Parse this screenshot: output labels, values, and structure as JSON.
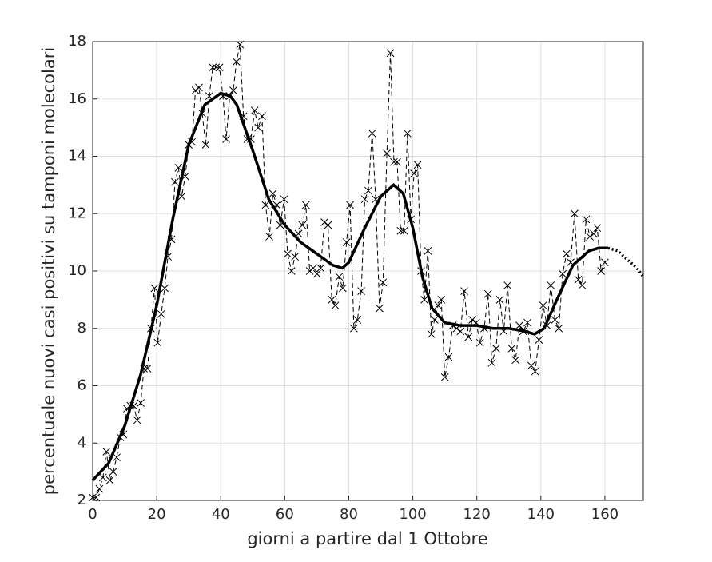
{
  "chart_data": {
    "type": "line",
    "xlabel": "giorni a partire dal 1 Ottobre",
    "ylabel": "percentuale nuovi casi positivi su tamponi molecolari",
    "xlim": [
      0,
      172
    ],
    "ylim": [
      2,
      18
    ],
    "xticks": [
      0,
      20,
      40,
      60,
      80,
      100,
      120,
      140,
      160
    ],
    "yticks": [
      2,
      4,
      6,
      8,
      10,
      12,
      14,
      16,
      18
    ],
    "grid": true,
    "series": [
      {
        "color": "#000000",
        "line_style": "dashed",
        "line_width": 1,
        "marker": "x",
        "x": [
          0,
          1.1,
          2.1,
          3.2,
          4.3,
          5.4,
          6.4,
          7.5,
          8.6,
          9.6,
          10.7,
          11.8,
          12.8,
          13.9,
          15,
          16,
          17.1,
          18.2,
          19.3,
          20.3,
          21.4,
          22.5,
          23.5,
          24.6,
          25.7,
          26.8,
          27.8,
          28.9,
          30,
          31,
          32.1,
          33.2,
          34.2,
          35.3,
          36.4,
          37.5,
          38.5,
          39.6,
          40.7,
          41.7,
          42.8,
          43.9,
          44.9,
          46,
          47.1,
          48.3,
          49.4,
          50.6,
          51.7,
          52.9,
          54,
          55.2,
          56.3,
          57.5,
          58.6,
          59.8,
          60.9,
          62.1,
          63.2,
          64.3,
          65.5,
          66.6,
          67.8,
          68.9,
          70.1,
          71.2,
          72.4,
          73.5,
          74.7,
          75.8,
          77,
          78.1,
          79.3,
          80.4,
          81.6,
          82.7,
          83.9,
          85,
          86.1,
          87.3,
          88.4,
          89.6,
          90.7,
          91.9,
          93,
          94.1,
          95.1,
          96.2,
          97.3,
          98.3,
          99.4,
          100.4,
          101.5,
          102.6,
          103.6,
          104.7,
          105.8,
          106.8,
          107.9,
          108.9,
          110,
          111.2,
          112.5,
          113.7,
          114.9,
          116.1,
          117.4,
          118.6,
          119.8,
          121,
          122.3,
          123.5,
          124.7,
          126,
          127.2,
          128.4,
          129.6,
          130.9,
          132.1,
          133.3,
          134.5,
          135.8,
          137,
          138.2,
          139.4,
          140.7,
          141.9,
          143.1,
          144.4,
          145.6,
          146.8,
          148,
          149.3,
          150.5,
          151.7,
          152.9,
          154.1,
          155.3,
          156.5,
          157.6,
          158.8,
          160
        ],
        "values": [
          2.1,
          2.1,
          2.4,
          2.8,
          3.7,
          2.7,
          3.0,
          3.5,
          4.2,
          4.3,
          5.2,
          5.3,
          5.3,
          4.8,
          5.4,
          6.6,
          6.6,
          8.0,
          9.4,
          7.5,
          8.5,
          9.4,
          10.5,
          11.1,
          13.1,
          13.6,
          12.6,
          13.3,
          14.4,
          14.5,
          16.3,
          16.4,
          15.5,
          14.4,
          16.1,
          17.1,
          17.1,
          17.1,
          16.1,
          14.6,
          16.1,
          16.3,
          17.3,
          17.9,
          15.4,
          14.6,
          14.6,
          15.6,
          15.0,
          15.4,
          12.3,
          11.2,
          12.7,
          12.3,
          11.6,
          12.5,
          10.6,
          10.0,
          10.5,
          11.3,
          11.6,
          12.3,
          10.0,
          10.1,
          9.9,
          10.1,
          11.7,
          11.6,
          9.0,
          8.8,
          9.8,
          9.4,
          11.0,
          12.3,
          8.0,
          8.3,
          9.3,
          12.5,
          12.8,
          14.8,
          12.5,
          8.7,
          9.6,
          14.1,
          17.6,
          13.8,
          13.8,
          11.4,
          11.4,
          14.8,
          11.8,
          13.4,
          13.7,
          10.0,
          9.0,
          10.7,
          7.8,
          8.3,
          8.8,
          9.0,
          6.3,
          7.0,
          8.1,
          8.0,
          7.9,
          9.3,
          7.7,
          8.3,
          8.2,
          7.5,
          8.0,
          9.2,
          6.8,
          7.3,
          9.0,
          7.9,
          9.5,
          7.3,
          6.9,
          8.1,
          7.9,
          8.2,
          6.7,
          6.5,
          7.6,
          8.8,
          8.1,
          9.5,
          8.3,
          8.0,
          9.9,
          10.6,
          10.3,
          12.0,
          9.7,
          9.5,
          11.8,
          11.2,
          11.3,
          11.5,
          10.0,
          10.3
        ]
      },
      {
        "color": "#000000",
        "line_style": "solid",
        "line_width": 3.5,
        "x": [
          0,
          5,
          10,
          15,
          20,
          25,
          30,
          35,
          40,
          43,
          45,
          50,
          55,
          60,
          65,
          70,
          75,
          78,
          80,
          85,
          90,
          94,
          97,
          100,
          103,
          106,
          110,
          115,
          120,
          125,
          130,
          135,
          138,
          141,
          145,
          150,
          155,
          158,
          161
        ],
        "values": [
          2.7,
          3.3,
          4.6,
          6.4,
          8.8,
          11.8,
          14.4,
          15.8,
          16.2,
          16.1,
          15.8,
          14.2,
          12.5,
          11.6,
          11.0,
          10.6,
          10.2,
          10.1,
          10.3,
          11.5,
          12.6,
          13.0,
          12.7,
          11.5,
          9.8,
          8.7,
          8.2,
          8.1,
          8.1,
          8.0,
          8.0,
          7.9,
          7.8,
          8.0,
          9.0,
          10.2,
          10.7,
          10.8,
          10.8
        ]
      },
      {
        "color": "#000000",
        "line_style": "dotted",
        "line_width": 3.5,
        "x": [
          161,
          164,
          167,
          170,
          172
        ],
        "values": [
          10.8,
          10.7,
          10.4,
          10.1,
          9.8
        ]
      }
    ]
  }
}
